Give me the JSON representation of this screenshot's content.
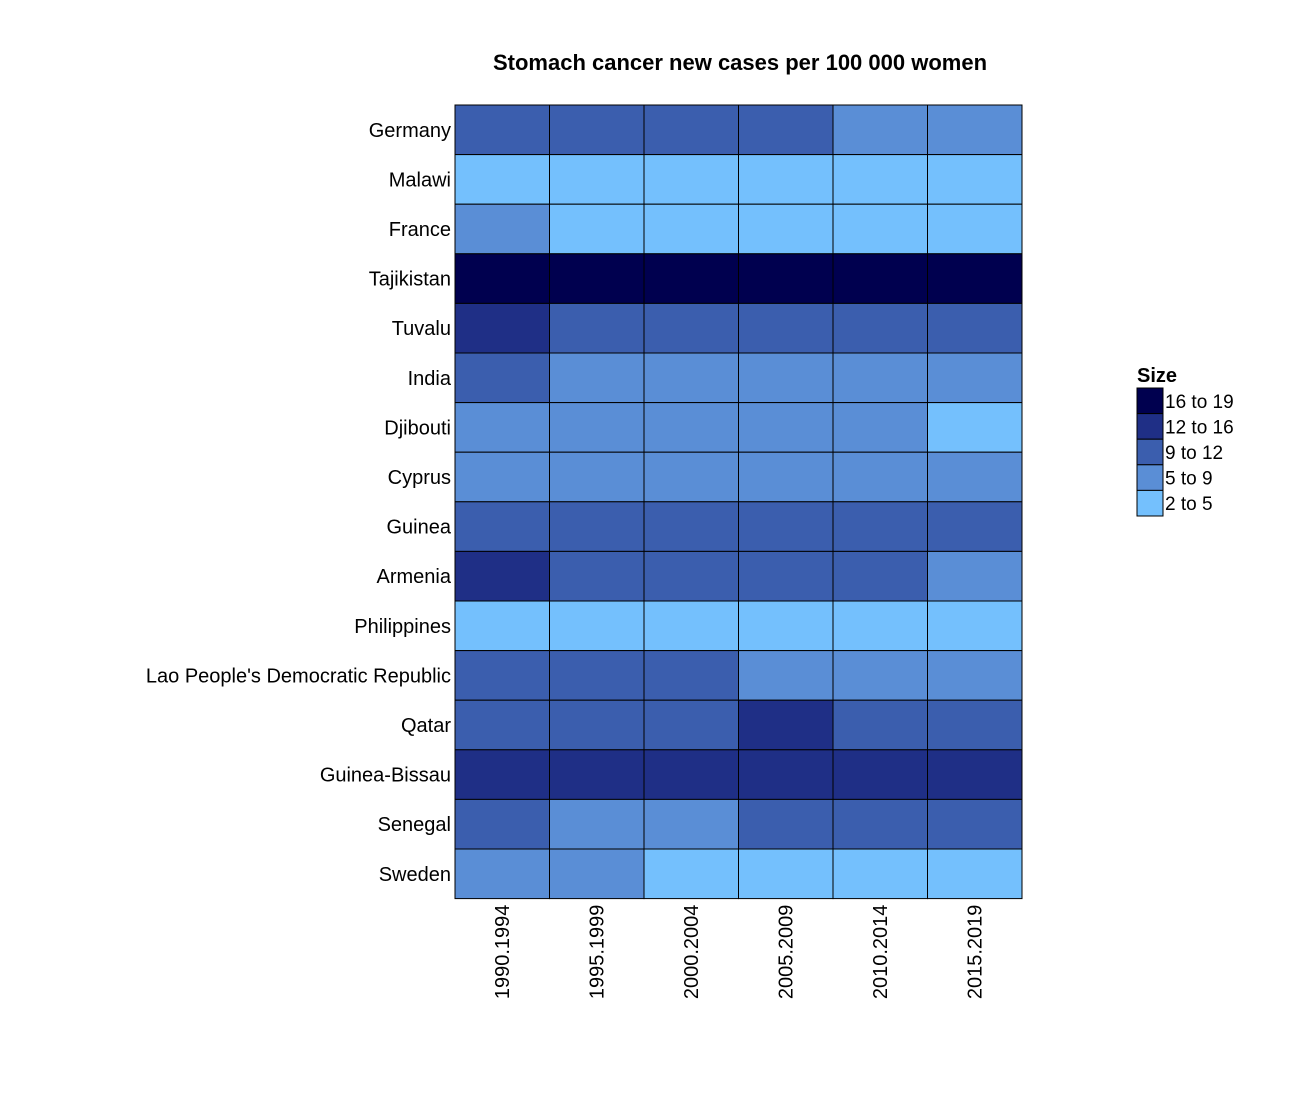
{
  "chart_data": {
    "type": "heatmap",
    "title": "Stomach cancer new cases per 100 000 women",
    "columns": [
      "1990.1994",
      "1995.1999",
      "2000.2004",
      "2005.2009",
      "2010.2014",
      "2015.2019"
    ],
    "rows": [
      "Germany",
      "Malawi",
      "France",
      "Tajikistan",
      "Tuvalu",
      "India",
      "Djibouti",
      "Cyprus",
      "Guinea",
      "Armenia",
      "Philippines",
      "Lao People's Democratic Republic",
      "Qatar",
      "Guinea-Bissau",
      "Senegal",
      "Sweden"
    ],
    "legend": {
      "title": "Size",
      "items": [
        {
          "label": "16 to 19",
          "color": "#00004f"
        },
        {
          "label": "12 to 16",
          "color": "#1f2f86"
        },
        {
          "label": "9 to 12",
          "color": "#3b5eae"
        },
        {
          "label": "5 to 9",
          "color": "#5a8ed6"
        },
        {
          "label": "2 to 5",
          "color": "#74c0fd"
        }
      ]
    },
    "cells": [
      [
        "9 to 12",
        "9 to 12",
        "9 to 12",
        "9 to 12",
        "5 to 9",
        "5 to 9"
      ],
      [
        "2 to 5",
        "2 to 5",
        "2 to 5",
        "2 to 5",
        "2 to 5",
        "2 to 5"
      ],
      [
        "5 to 9",
        "2 to 5",
        "2 to 5",
        "2 to 5",
        "2 to 5",
        "2 to 5"
      ],
      [
        "16 to 19",
        "16 to 19",
        "16 to 19",
        "16 to 19",
        "16 to 19",
        "16 to 19"
      ],
      [
        "12 to 16",
        "9 to 12",
        "9 to 12",
        "9 to 12",
        "9 to 12",
        "9 to 12"
      ],
      [
        "9 to 12",
        "5 to 9",
        "5 to 9",
        "5 to 9",
        "5 to 9",
        "5 to 9"
      ],
      [
        "5 to 9",
        "5 to 9",
        "5 to 9",
        "5 to 9",
        "5 to 9",
        "2 to 5"
      ],
      [
        "5 to 9",
        "5 to 9",
        "5 to 9",
        "5 to 9",
        "5 to 9",
        "5 to 9"
      ],
      [
        "9 to 12",
        "9 to 12",
        "9 to 12",
        "9 to 12",
        "9 to 12",
        "9 to 12"
      ],
      [
        "12 to 16",
        "9 to 12",
        "9 to 12",
        "9 to 12",
        "9 to 12",
        "5 to 9"
      ],
      [
        "2 to 5",
        "2 to 5",
        "2 to 5",
        "2 to 5",
        "2 to 5",
        "2 to 5"
      ],
      [
        "9 to 12",
        "9 to 12",
        "9 to 12",
        "5 to 9",
        "5 to 9",
        "5 to 9"
      ],
      [
        "9 to 12",
        "9 to 12",
        "9 to 12",
        "12 to 16",
        "9 to 12",
        "9 to 12"
      ],
      [
        "12 to 16",
        "12 to 16",
        "12 to 16",
        "12 to 16",
        "12 to 16",
        "12 to 16"
      ],
      [
        "9 to 12",
        "5 to 9",
        "5 to 9",
        "9 to 12",
        "9 to 12",
        "9 to 12"
      ],
      [
        "5 to 9",
        "5 to 9",
        "2 to 5",
        "2 to 5",
        "2 to 5",
        "2 to 5"
      ]
    ]
  }
}
